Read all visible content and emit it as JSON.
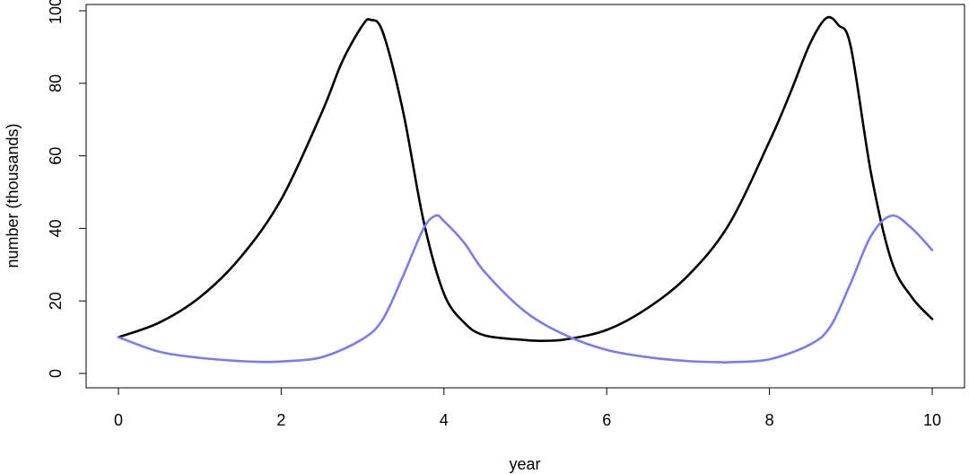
{
  "chart_data": {
    "type": "line",
    "title": "",
    "xlabel": "year",
    "ylabel": "number (thousands)",
    "xlim": [
      0,
      10
    ],
    "ylim": [
      0,
      100
    ],
    "xticks": [
      0,
      2,
      4,
      6,
      8,
      10
    ],
    "yticks": [
      0,
      20,
      40,
      60,
      80,
      100
    ],
    "x_tick_labels": [
      "0",
      "2",
      "4",
      "6",
      "8",
      "10"
    ],
    "y_tick_labels": [
      "0",
      "20",
      "40",
      "60",
      "80",
      "100"
    ],
    "grid": false,
    "legend": "none",
    "series": [
      {
        "color": "#000000",
        "x": [
          0,
          0.5,
          1.0,
          1.5,
          2.0,
          2.5,
          2.75,
          3.0,
          3.1,
          3.25,
          3.5,
          3.75,
          4.0,
          4.25,
          4.5,
          5.0,
          5.2,
          5.5,
          6.0,
          6.5,
          7.0,
          7.5,
          8.0,
          8.25,
          8.5,
          8.7,
          8.85,
          9.0,
          9.25,
          9.5,
          9.75,
          10.0
        ],
        "y": [
          10,
          14,
          21,
          32,
          48,
          72,
          86,
          96,
          97.5,
          94,
          72,
          42,
          22,
          14,
          10.5,
          9.2,
          9,
          9.4,
          12,
          18,
          27,
          41,
          64,
          77,
          91,
          98,
          96,
          90,
          55,
          31,
          21,
          15
        ]
      },
      {
        "color": "#7b7bf0",
        "x": [
          0,
          0.5,
          1.0,
          1.5,
          1.75,
          2.0,
          2.5,
          3.0,
          3.25,
          3.5,
          3.75,
          3.9,
          4.0,
          4.25,
          4.5,
          5.0,
          5.5,
          6.0,
          6.5,
          7.0,
          7.4,
          7.5,
          8.0,
          8.5,
          8.75,
          9.0,
          9.25,
          9.5,
          9.75,
          10.0
        ],
        "y": [
          10,
          6,
          4.3,
          3.4,
          3.2,
          3.3,
          4.5,
          9.5,
          15,
          27,
          40,
          43.5,
          42,
          36,
          28,
          17,
          10.5,
          6.5,
          4.5,
          3.4,
          3.1,
          3.1,
          3.9,
          8,
          13,
          25,
          38,
          43.5,
          40,
          34
        ]
      }
    ]
  }
}
